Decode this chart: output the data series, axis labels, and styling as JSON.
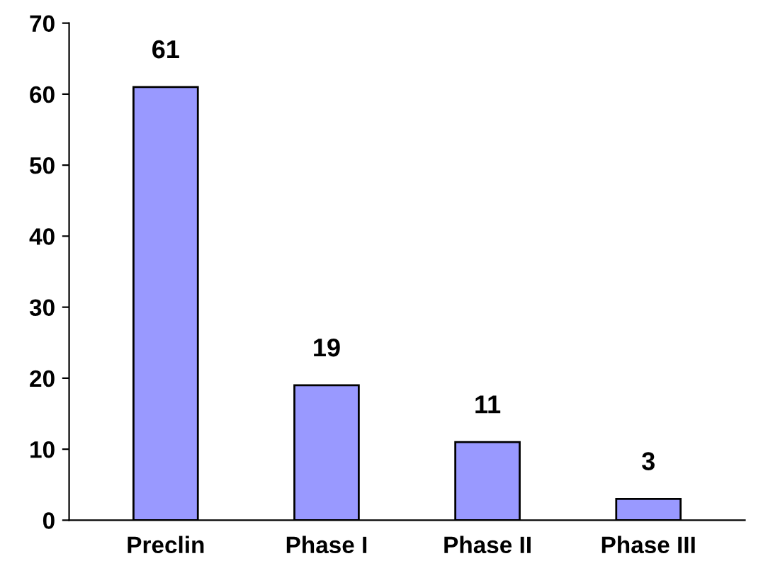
{
  "chart_data": {
    "type": "bar",
    "categories": [
      "Preclin",
      "Phase I",
      "Phase II",
      "Phase III"
    ],
    "values": [
      61,
      19,
      11,
      3
    ],
    "color": "#9999ff",
    "ylim": [
      0,
      70
    ],
    "yticks": [
      0,
      10,
      20,
      30,
      40,
      50,
      60,
      70
    ],
    "grid": false,
    "data_labels": true
  }
}
